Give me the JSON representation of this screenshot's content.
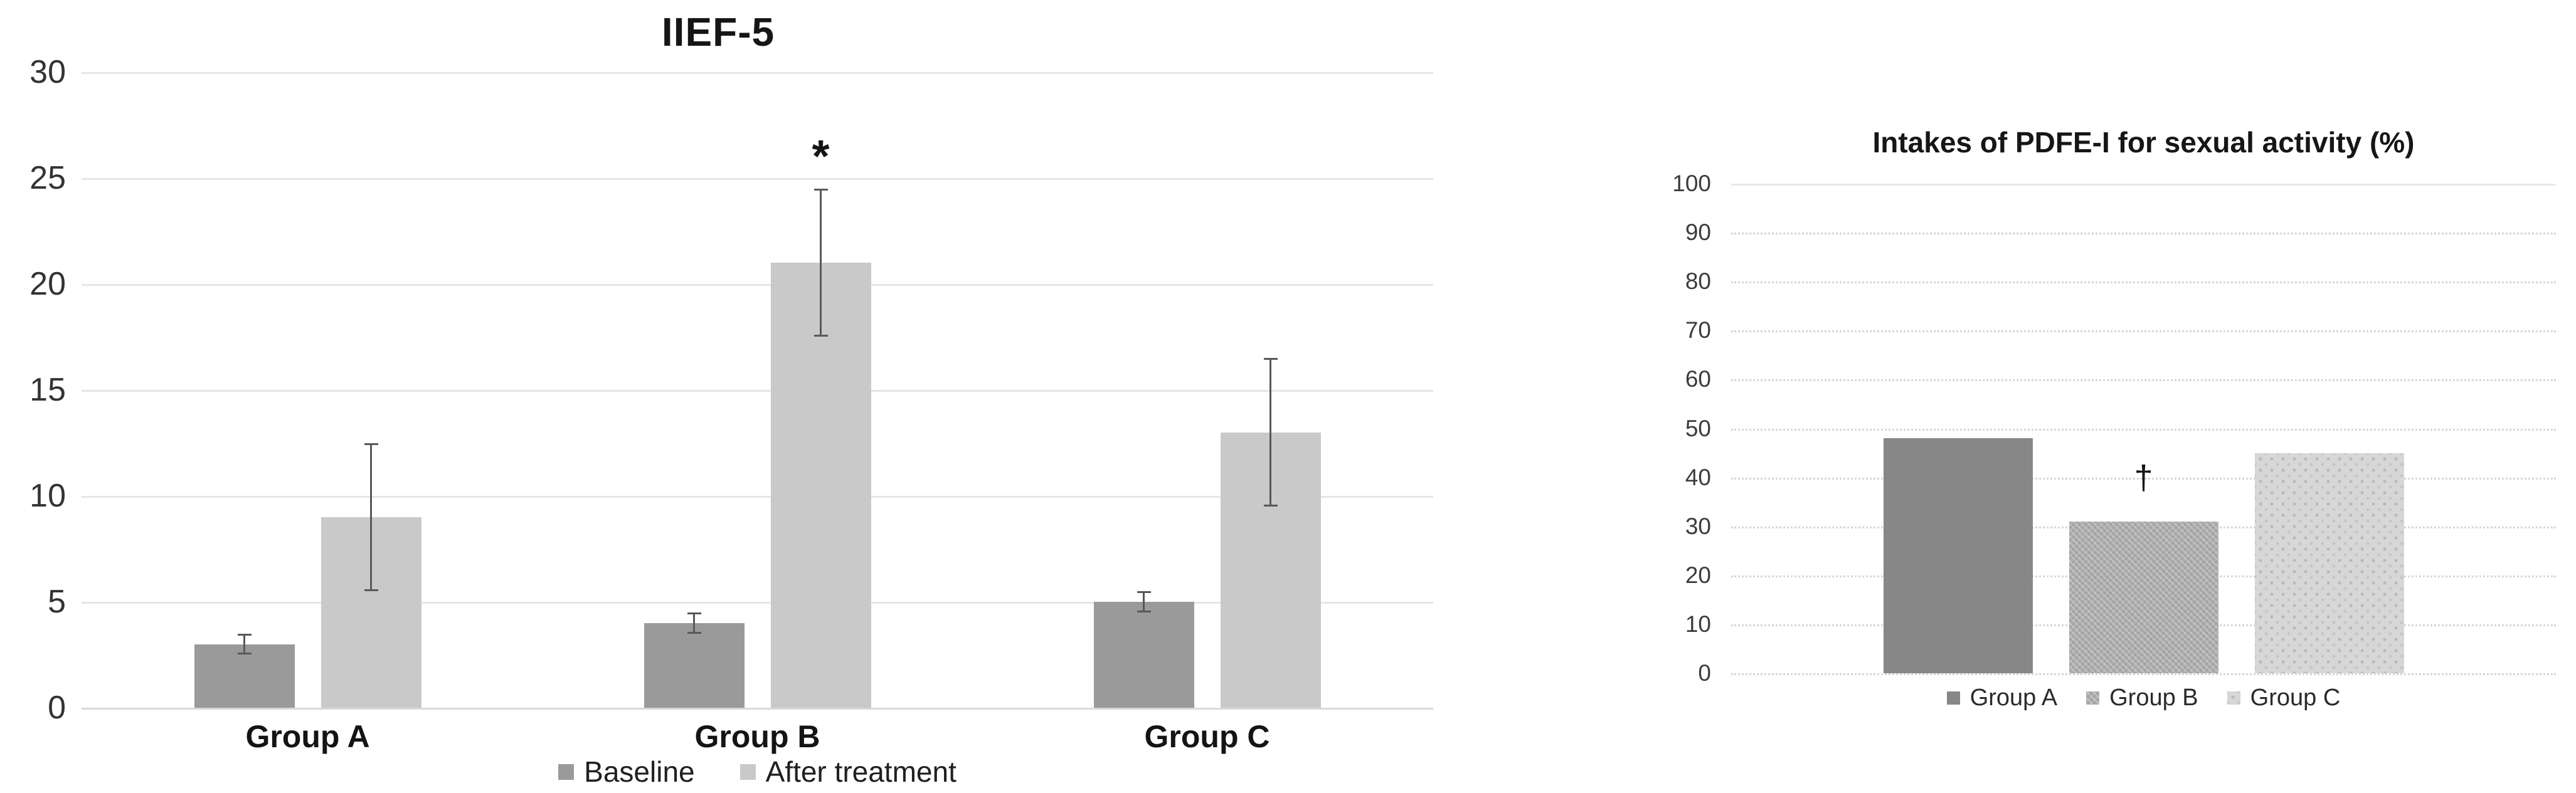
{
  "chart_data": [
    {
      "type": "bar",
      "title": "IIEF-5",
      "categories": [
        "Group A",
        "Group B",
        "Group C"
      ],
      "series": [
        {
          "name": "Baseline",
          "values": [
            3,
            4,
            5
          ],
          "errors": [
            0.5,
            0.5,
            0.5
          ],
          "color": "#9a9a9a"
        },
        {
          "name": "After treatment",
          "values": [
            9,
            21,
            13
          ],
          "errors": [
            3.5,
            3.5,
            3.5
          ],
          "color": "#c9c9c9"
        }
      ],
      "ylim": [
        0,
        30
      ],
      "ytick_step": 5,
      "ytick_labels": [
        "0",
        "5",
        "10",
        "15",
        "20",
        "25",
        "30"
      ],
      "grid": "solid",
      "legend_position": "bottom",
      "annotations": [
        {
          "text": "*",
          "category": "Group B",
          "series": "After treatment",
          "y": 26
        }
      ]
    },
    {
      "type": "bar",
      "title": "Intakes of PDFE-I for sexual activity (%)",
      "categories": [
        "Group A",
        "Group B",
        "Group C"
      ],
      "values": [
        48,
        31,
        45
      ],
      "bar_colors": [
        "#878787",
        "#aeaeae",
        "#d7d7d7"
      ],
      "bar_patterns": [
        "solid",
        "weave",
        "dots"
      ],
      "ylim": [
        0,
        100
      ],
      "ytick_step": 10,
      "ytick_labels": [
        "0",
        "10",
        "20",
        "30",
        "40",
        "50",
        "60",
        "70",
        "80",
        "90",
        "100"
      ],
      "grid": "dotted",
      "legend_position": "bottom",
      "show_category_labels": false,
      "annotations": [
        {
          "text": "†",
          "category": "Group B",
          "y": 40
        }
      ]
    }
  ]
}
